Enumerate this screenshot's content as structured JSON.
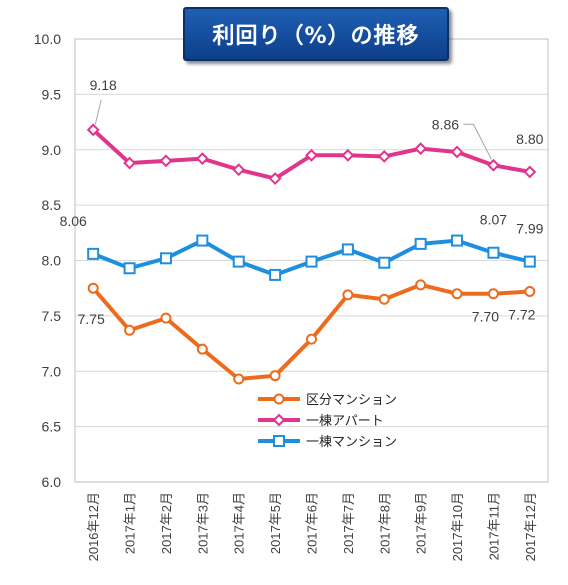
{
  "chart_data": {
    "type": "line",
    "title": "利回り（%）の推移",
    "categories": [
      "2016年12月",
      "2017年1月",
      "2017年2月",
      "2017年3月",
      "2017年4月",
      "2017年5月",
      "2017年6月",
      "2017年7月",
      "2017年8月",
      "2017年9月",
      "2017年10月",
      "2017年11月",
      "2017年12月"
    ],
    "ylim": [
      6.0,
      10.0
    ],
    "yticks": [
      "6.0",
      "6.5",
      "7.0",
      "7.5",
      "8.0",
      "8.5",
      "9.0",
      "9.5",
      "10.0"
    ],
    "grid": true,
    "legend": "center-right",
    "series": [
      {
        "name": "区分マンション",
        "color": "#ed6b1c",
        "marker": "circle",
        "values": [
          7.75,
          7.37,
          7.48,
          7.2,
          6.93,
          6.96,
          7.29,
          7.69,
          7.65,
          7.78,
          7.7,
          7.7,
          7.72
        ]
      },
      {
        "name": "一棟アパート",
        "color": "#e0358d",
        "marker": "diamond",
        "values": [
          9.18,
          8.88,
          8.9,
          8.92,
          8.82,
          8.74,
          8.95,
          8.95,
          8.94,
          9.01,
          8.98,
          8.86,
          8.8
        ]
      },
      {
        "name": "一棟マンション",
        "color": "#1e8fe0",
        "marker": "square",
        "values": [
          8.06,
          7.93,
          8.02,
          8.18,
          7.99,
          7.87,
          7.99,
          8.1,
          7.98,
          8.15,
          8.18,
          8.07,
          7.99
        ]
      }
    ],
    "annotations": [
      {
        "series": 1,
        "index": 0,
        "text": "9.18"
      },
      {
        "series": 1,
        "index": 11,
        "text": "8.86"
      },
      {
        "series": 1,
        "index": 12,
        "text": "8.80"
      },
      {
        "series": 2,
        "index": 0,
        "text": "8.06"
      },
      {
        "series": 2,
        "index": 11,
        "text": "8.07"
      },
      {
        "series": 2,
        "index": 12,
        "text": "7.99"
      },
      {
        "series": 0,
        "index": 0,
        "text": "7.75"
      },
      {
        "series": 0,
        "index": 11,
        "text": "7.70"
      },
      {
        "series": 0,
        "index": 12,
        "text": "7.72"
      }
    ]
  }
}
